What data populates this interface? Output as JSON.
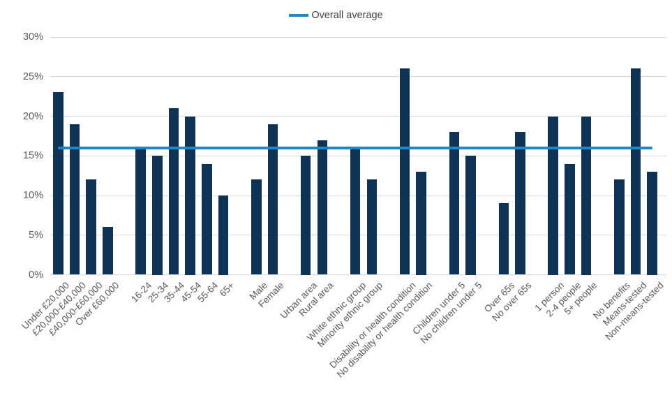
{
  "colors": {
    "bar": "#0f3355",
    "average_line": "#1e87c8",
    "gridline": "#d9d9d9",
    "axis_text": "#595959",
    "legend_text": "#404040",
    "background": "#ffffff"
  },
  "chart_data": {
    "type": "bar",
    "title": "",
    "unit": "%",
    "grid": true,
    "legend_position": "top-center",
    "ylim": [
      0,
      30
    ],
    "y_ticks": [
      "0%",
      "5%",
      "10%",
      "15%",
      "20%",
      "25%",
      "30%"
    ],
    "average_line": {
      "label": "Overall average",
      "value": 16
    },
    "groups": [
      {
        "group": "household-income",
        "categories": [
          "Under £20,000",
          "£20,000-£40,000",
          "£40,000-£60,000",
          "Over £60,000"
        ],
        "values": [
          23,
          19,
          12,
          6
        ]
      },
      {
        "group": "age",
        "categories": [
          "16-24",
          "25-34",
          "35-44",
          "45-54",
          "55-64",
          "65+"
        ],
        "values": [
          16,
          15,
          21,
          20,
          14,
          10
        ]
      },
      {
        "group": "sex",
        "categories": [
          "Male",
          "Female"
        ],
        "values": [
          12,
          19
        ]
      },
      {
        "group": "area",
        "categories": [
          "Urban area",
          "Rural area"
        ],
        "values": [
          15,
          17
        ]
      },
      {
        "group": "ethnicity",
        "categories": [
          "White ethnic group",
          "Minority ethnic group"
        ],
        "values": [
          16,
          12
        ]
      },
      {
        "group": "disability",
        "categories": [
          "Disability or health condition",
          "No disability or health condition"
        ],
        "values": [
          26,
          13
        ]
      },
      {
        "group": "children",
        "categories": [
          "Children under 5",
          "No children under 5"
        ],
        "values": [
          18,
          15
        ]
      },
      {
        "group": "over-65s",
        "categories": [
          "Over 65s",
          "No over 65s"
        ],
        "values": [
          9,
          18
        ]
      },
      {
        "group": "household-size",
        "categories": [
          "1 person",
          "2-4 people",
          "5+ people"
        ],
        "values": [
          20,
          14,
          20
        ]
      },
      {
        "group": "benefits",
        "categories": [
          "No benefits",
          "Means-tested",
          "Non-means-tested"
        ],
        "values": [
          12,
          26,
          13
        ]
      }
    ]
  }
}
